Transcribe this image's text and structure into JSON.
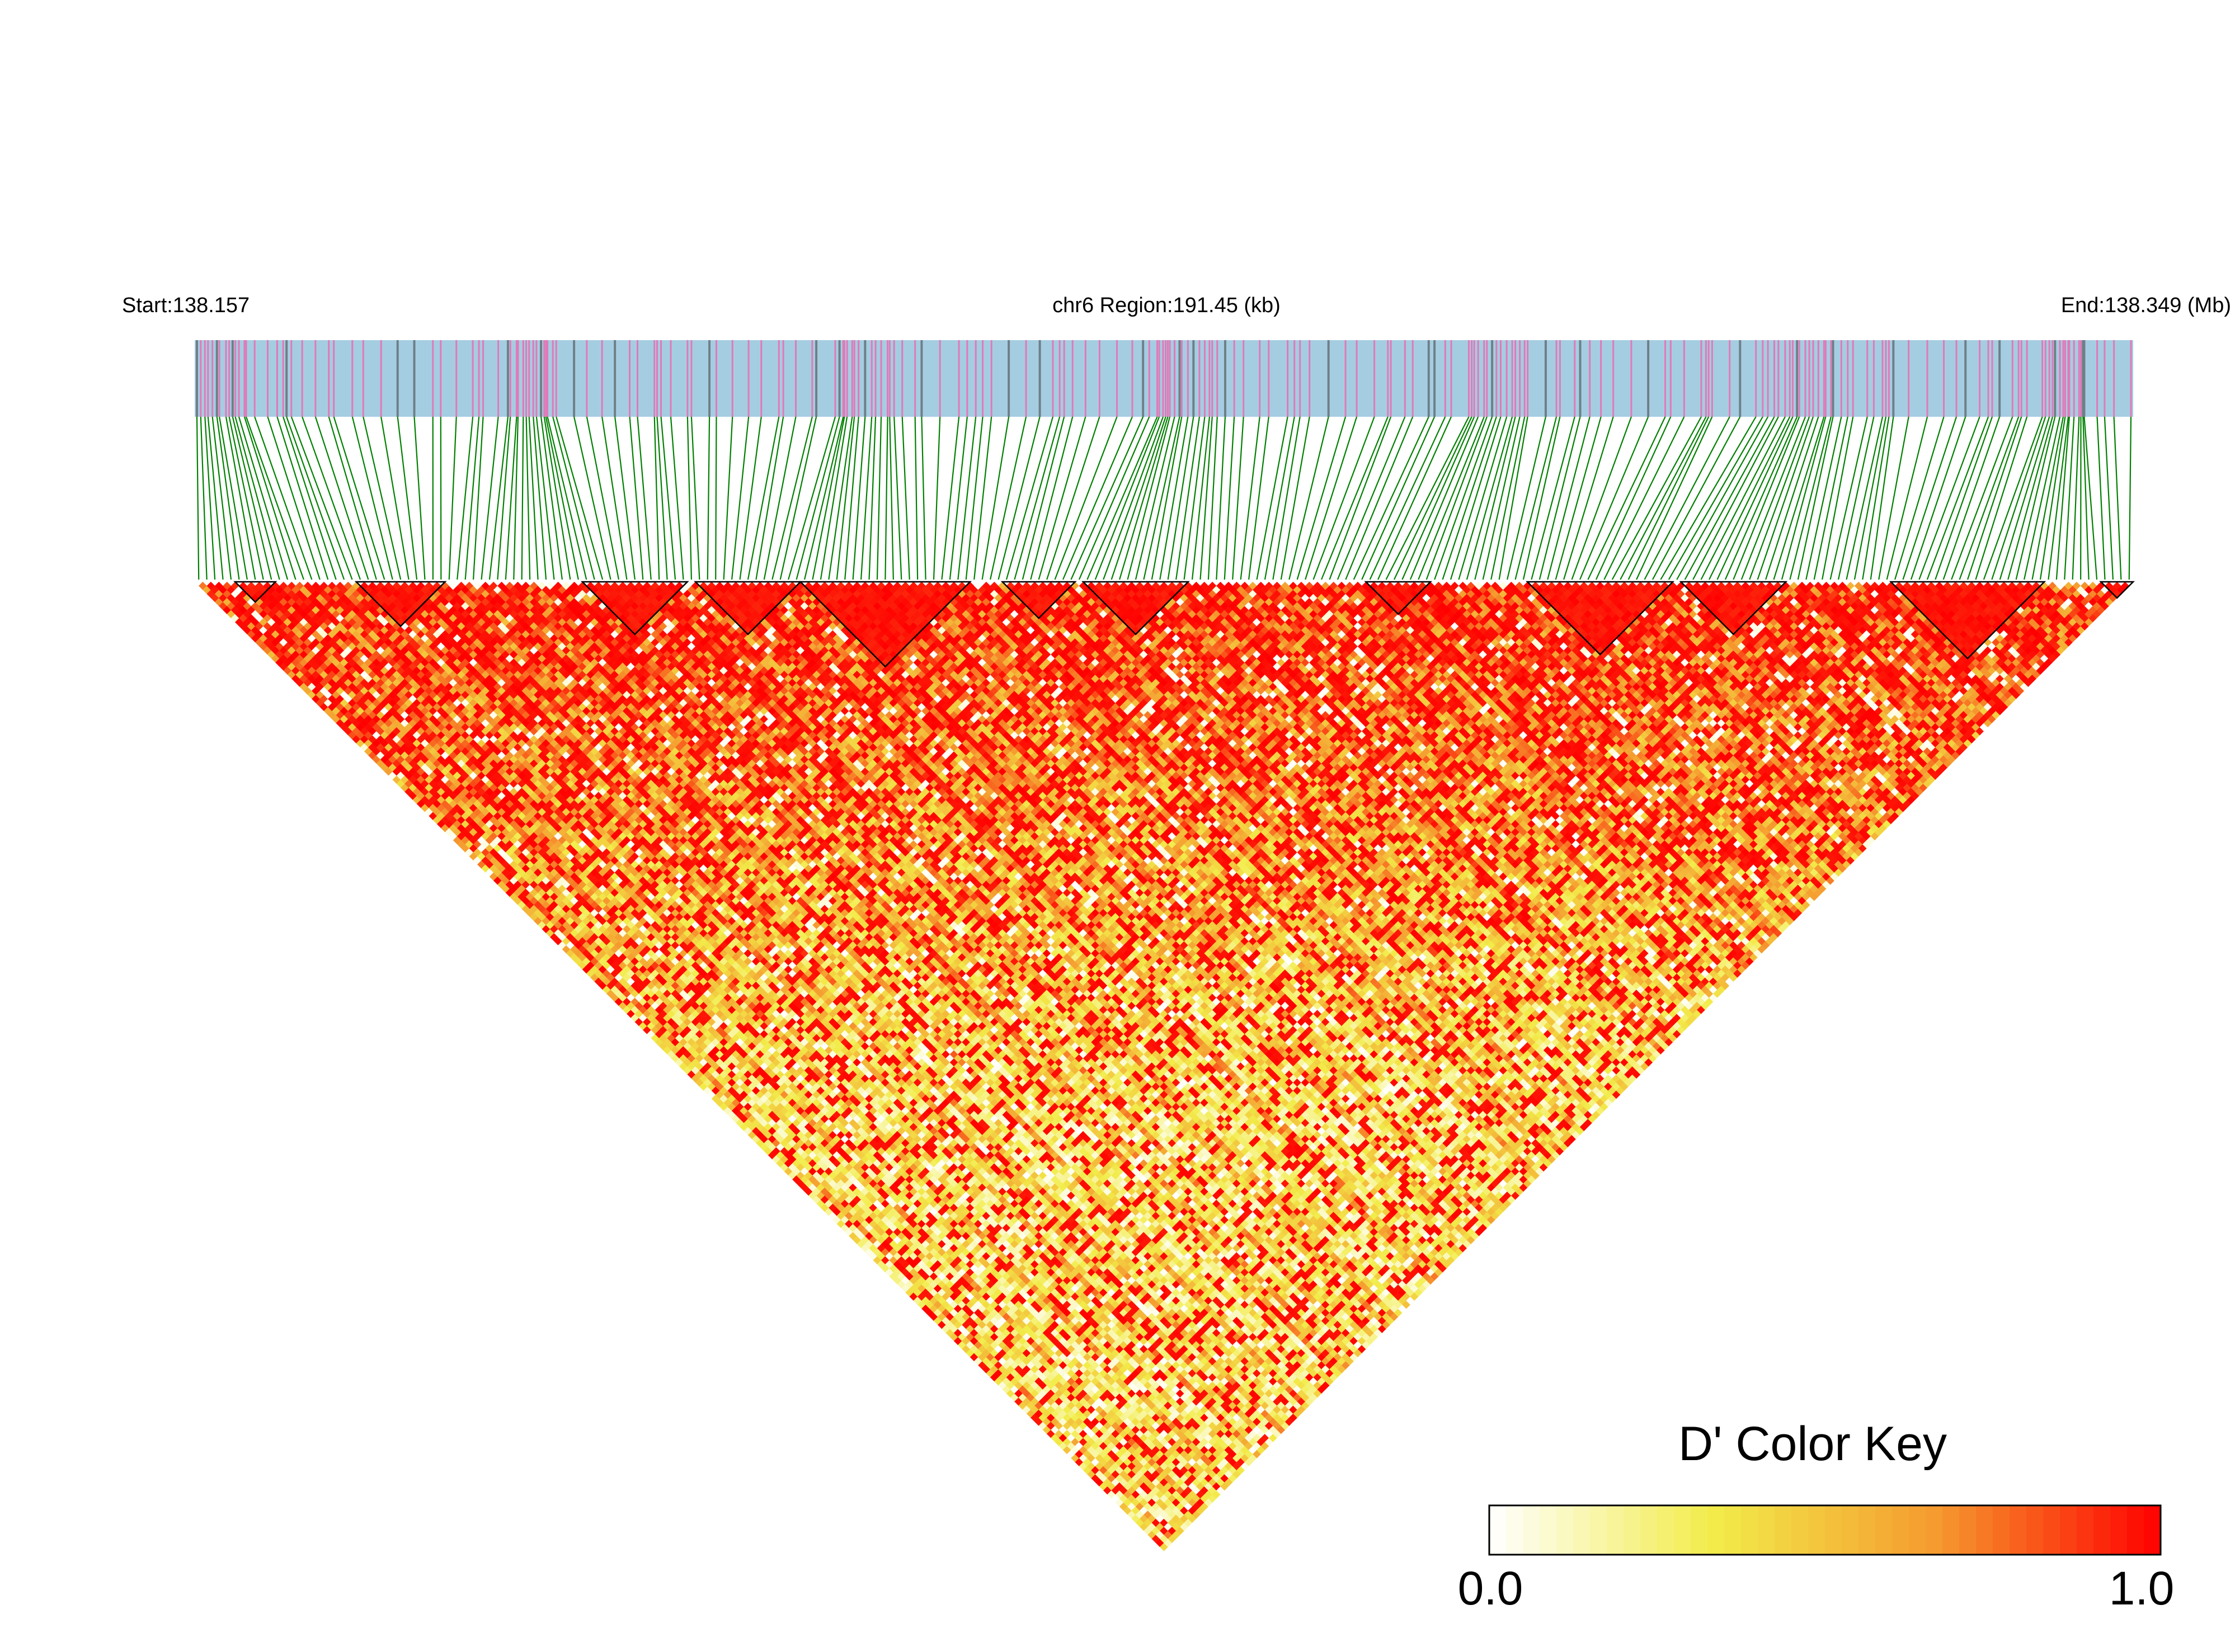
{
  "chart_data": {
    "type": "heatmap",
    "title": "",
    "region_label": "chr6 Region:191.45 (kb)",
    "start_label": "Start:138.157",
    "end_label": "End:138.349 (Mb)",
    "chromosome": "chr6",
    "region_start_mb": 138.157,
    "region_end_mb": 138.349,
    "region_length_kb": 191.45,
    "num_snps": 240,
    "measure": "D'",
    "layout": "ld-triangle",
    "haplotype_blocks": [
      {
        "from_snp": 5,
        "to_snp": 9
      },
      {
        "from_snp": 20,
        "to_snp": 30
      },
      {
        "from_snp": 48,
        "to_snp": 60
      },
      {
        "from_snp": 62,
        "to_snp": 74
      },
      {
        "from_snp": 75,
        "to_snp": 95
      },
      {
        "from_snp": 100,
        "to_snp": 108
      },
      {
        "from_snp": 110,
        "to_snp": 122
      },
      {
        "from_snp": 145,
        "to_snp": 152
      },
      {
        "from_snp": 165,
        "to_snp": 182
      },
      {
        "from_snp": 184,
        "to_snp": 196
      },
      {
        "from_snp": 210,
        "to_snp": 228
      },
      {
        "from_snp": 236,
        "to_snp": 239
      }
    ],
    "color_key": {
      "title": "D' Color Key",
      "min_label": "0.0",
      "max_label": "1.0",
      "min": 0.0,
      "max": 1.0,
      "colors": [
        "#ffffff",
        "#f2ec4a",
        "#f59a2f",
        "#ff0000"
      ]
    },
    "colors": {
      "snp_bar_background": "#a5cde2",
      "snp_tick_pink": "#e07ab8",
      "snp_tick_grey": "#6f7f87",
      "connector_lines": "#008000",
      "high_ld": "#ff0000",
      "block_outline": "#000000"
    }
  }
}
